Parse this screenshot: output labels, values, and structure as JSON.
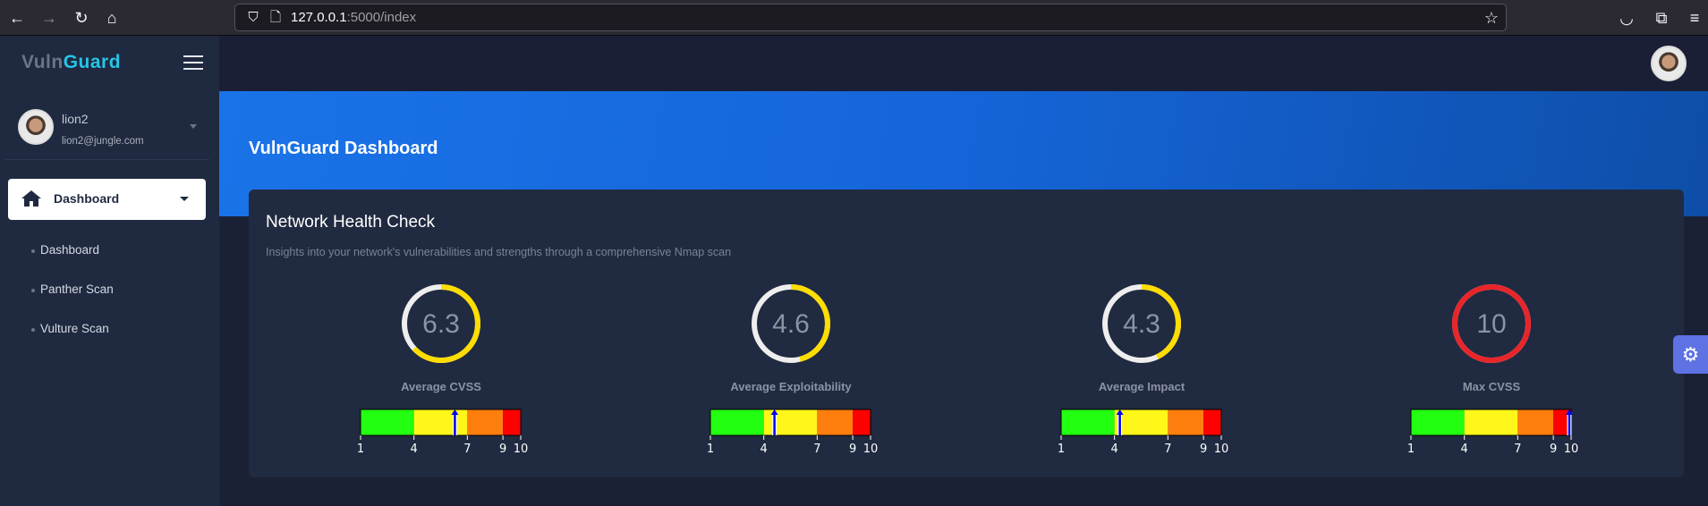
{
  "browser": {
    "url_host": "127.0.0.1",
    "url_path": ":5000/index"
  },
  "sidebar": {
    "brand_a": "Vuln",
    "brand_b": "Guard",
    "user": {
      "name": "lion2",
      "email": "lion2@jungle.com"
    },
    "nav": {
      "label": "Dashboard",
      "items": [
        {
          "label": "Dashboard"
        },
        {
          "label": "Panther Scan"
        },
        {
          "label": "Vulture Scan"
        }
      ]
    }
  },
  "page": {
    "title": "VulnGuard Dashboard"
  },
  "card": {
    "title": "Network Health Check",
    "subtitle": "Insights into your network's vulnerabilities and strengths through a comprehensive Nmap scan"
  },
  "scale": {
    "ticks": [
      1,
      4,
      7,
      9,
      10
    ],
    "bands": [
      {
        "from": 1,
        "to": 4,
        "color": "#22ff11"
      },
      {
        "from": 4,
        "to": 7,
        "color": "#fff71a"
      },
      {
        "from": 7,
        "to": 9,
        "color": "#ff7f0e"
      },
      {
        "from": 9,
        "to": 10,
        "color": "#ff0000"
      }
    ]
  },
  "metrics": [
    {
      "label": "Average CVSS",
      "value": "6.3",
      "num": 6.3,
      "ring_color": "#ffdd00"
    },
    {
      "label": "Average Exploitability",
      "value": "4.6",
      "num": 4.6,
      "ring_color": "#ffdd00"
    },
    {
      "label": "Average Impact",
      "value": "4.3",
      "num": 4.3,
      "ring_color": "#ffdd00"
    },
    {
      "label": "Max CVSS",
      "value": "10",
      "num": 10,
      "ring_color": "#e8262a"
    }
  ]
}
